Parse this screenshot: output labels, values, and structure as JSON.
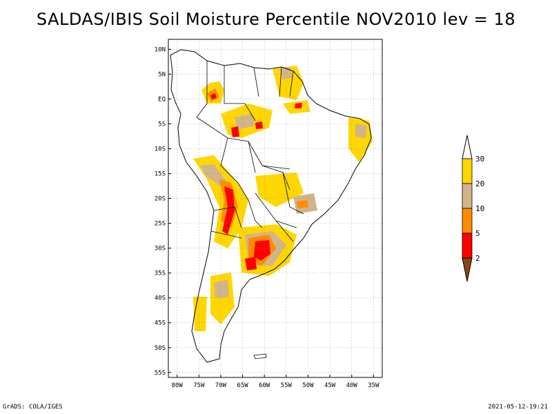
{
  "title": "SALDAS/IBIS Soil Moisture Percentile NOV2010 lev = 18",
  "footer": {
    "left": "GrADS: COLA/IGES",
    "right": "2021-05-12-19:21"
  },
  "map": {
    "lat_ticks": [
      "10N",
      "5N",
      "EQ",
      "5S",
      "10S",
      "15S",
      "20S",
      "25S",
      "30S",
      "35S",
      "40S",
      "45S",
      "50S",
      "55S"
    ],
    "lat_values": [
      10,
      5,
      0,
      -5,
      -10,
      -15,
      -20,
      -25,
      -30,
      -35,
      -40,
      -45,
      -50,
      -55
    ],
    "lon_ticks": [
      "80W",
      "75W",
      "70W",
      "65W",
      "60W",
      "55W",
      "50W",
      "45W",
      "40W",
      "35W"
    ],
    "lon_values": [
      -80,
      -75,
      -70,
      -65,
      -60,
      -55,
      -50,
      -45,
      -40,
      -35
    ],
    "lat_range": [
      -56,
      12
    ],
    "lon_range": [
      -82,
      -33
    ]
  },
  "colorbar": {
    "labels": [
      "2",
      "5",
      "10",
      "20",
      "30"
    ],
    "colors": {
      "below": "#8b4513",
      "b2_5": "#ff0000",
      "b5_10": "#ff8c00",
      "b10_20": "#d2b48c",
      "b20_30": "#ffd700",
      "above": "#ffffff"
    }
  },
  "colors": {
    "yellow": "#ffd700",
    "tan": "#d2b48c",
    "orange": "#ff8c00",
    "red": "#ff0000",
    "brown": "#8b4513",
    "coast": "#000000",
    "grid": "#888888"
  }
}
